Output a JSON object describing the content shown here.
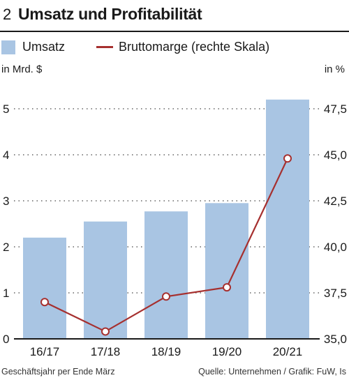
{
  "header": {
    "number": "2",
    "title": "Umsatz und Profitabilität"
  },
  "legend": {
    "bar_label": "Umsatz",
    "line_label": "Bruttomarge (rechte Skala)"
  },
  "units": {
    "left": "in Mrd. $",
    "right": "in %"
  },
  "footer": {
    "left": "Geschäftsjahr per Ende März",
    "right": "Quelle: Unternehmen / Grafik: FuW, Is"
  },
  "colors": {
    "bar": "#a9c5e3",
    "line": "#a6302f",
    "marker_fill": "#ffffff",
    "grid": "#444444"
  },
  "chart_data": {
    "type": "bar",
    "title": "Umsatz und Profitabilität",
    "categories": [
      "16/17",
      "17/18",
      "18/19",
      "19/20",
      "20/21"
    ],
    "series": [
      {
        "name": "Umsatz",
        "type": "bar",
        "axis": "left",
        "values": [
          2.2,
          2.55,
          2.77,
          2.95,
          5.2
        ]
      },
      {
        "name": "Bruttomarge (rechte Skala)",
        "type": "line",
        "axis": "right",
        "values": [
          37.0,
          35.4,
          37.3,
          37.8,
          44.8
        ]
      }
    ],
    "y_left": {
      "label": "in Mrd. $",
      "min": 0,
      "max": 5.4,
      "ticks": [
        "0",
        "1",
        "2",
        "3",
        "4",
        "5"
      ]
    },
    "y_right": {
      "label": "in %",
      "min": 35.0,
      "max": 48.5,
      "ticks": [
        "35,0",
        "37,5",
        "40,0",
        "42,5",
        "45,0",
        "47,5"
      ]
    },
    "grid": "dotted horizontal",
    "legend_position": "top-left"
  }
}
